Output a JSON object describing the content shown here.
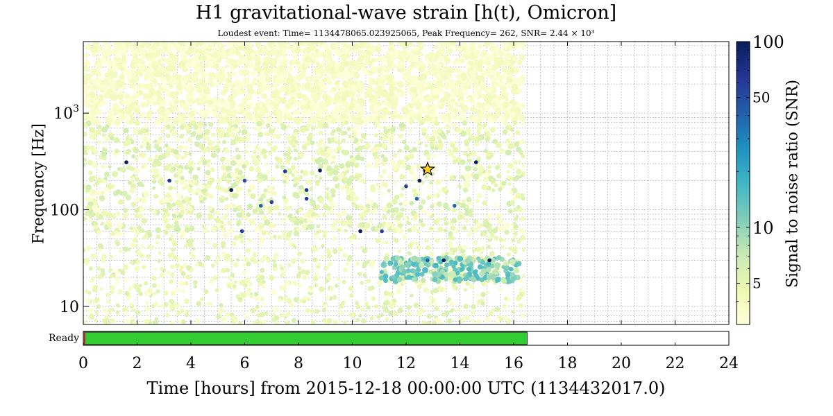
{
  "title": "H1 gravitational-wave strain [h(t), Omicron]",
  "subtitle": "Loudest event: Time= 1134478065.023925065, Peak Frequency= 262, SNR= 2.44 × 10³",
  "colormap": [
    "#ffffd9",
    "#edf8b1",
    "#c7e9b4",
    "#7fcdbb",
    "#41b6c4",
    "#1d91c0",
    "#225ea8",
    "#253494",
    "#081d58"
  ],
  "chart_data": {
    "type": "scatter",
    "title": "H1 gravitational-wave strain [h(t), Omicron]",
    "subtitle": "Loudest event: Time= 1134478065.023925065, Peak Frequency= 262, SNR= 2.44 × 10³",
    "xlabel": "Time [hours] from 2015-12-18 00:00:00 UTC (1134432017.0)",
    "ylabel": "Frequency [Hz]",
    "xlim": [
      0,
      24
    ],
    "ylim": [
      6.5,
      5500
    ],
    "yscale": "log",
    "grid": true,
    "x_ticks": [
      "0",
      "2",
      "4",
      "6",
      "8",
      "10",
      "12",
      "14",
      "16",
      "18",
      "20",
      "22",
      "24"
    ],
    "y_ticks": [
      {
        "value": 10,
        "label": "10"
      },
      {
        "value": 100,
        "label": "100"
      },
      {
        "value": 1000,
        "label": "10³"
      }
    ],
    "data_end_hours": 16.4,
    "loudest_event": {
      "x": 12.8,
      "y": 262,
      "snr": 2440,
      "marker": "star"
    },
    "high_snr_events": [
      {
        "x": 1.6,
        "y": 310,
        "snr": 100
      },
      {
        "x": 3.2,
        "y": 200,
        "snr": 60
      },
      {
        "x": 5.5,
        "y": 160,
        "snr": 100
      },
      {
        "x": 6.0,
        "y": 200,
        "snr": 50
      },
      {
        "x": 5.9,
        "y": 60,
        "snr": 60
      },
      {
        "x": 6.6,
        "y": 110,
        "snr": 40
      },
      {
        "x": 7.0,
        "y": 120,
        "snr": 60
      },
      {
        "x": 7.5,
        "y": 250,
        "snr": 60
      },
      {
        "x": 8.3,
        "y": 160,
        "snr": 60
      },
      {
        "x": 8.3,
        "y": 130,
        "snr": 60
      },
      {
        "x": 8.8,
        "y": 255,
        "snr": 100
      },
      {
        "x": 10.3,
        "y": 60,
        "snr": 100
      },
      {
        "x": 11.1,
        "y": 60,
        "snr": 60
      },
      {
        "x": 12.0,
        "y": 175,
        "snr": 60
      },
      {
        "x": 12.5,
        "y": 200,
        "snr": 100
      },
      {
        "x": 12.7,
        "y": 255,
        "snr": 60
      },
      {
        "x": 13.4,
        "y": 30,
        "snr": 100
      },
      {
        "x": 14.6,
        "y": 310,
        "snr": 100
      },
      {
        "x": 15.1,
        "y": 30,
        "snr": 100
      },
      {
        "x": 13.8,
        "y": 110,
        "snr": 40
      },
      {
        "x": 12.8,
        "y": 30,
        "snr": 40
      },
      {
        "x": 12.4,
        "y": 130,
        "snr": 40
      }
    ],
    "colorbar": {
      "label": "Signal to noise ratio (SNR)",
      "scale": "log",
      "range": [
        3,
        100
      ],
      "ticks": [
        "5",
        "10",
        "50",
        "100"
      ],
      "tick_values": [
        5,
        10,
        50,
        100
      ]
    },
    "segments": {
      "label": "Ready",
      "active": [
        [
          0,
          16.5
        ]
      ],
      "color_active": "#33cc33",
      "color_inactive": "#ffffff"
    }
  }
}
